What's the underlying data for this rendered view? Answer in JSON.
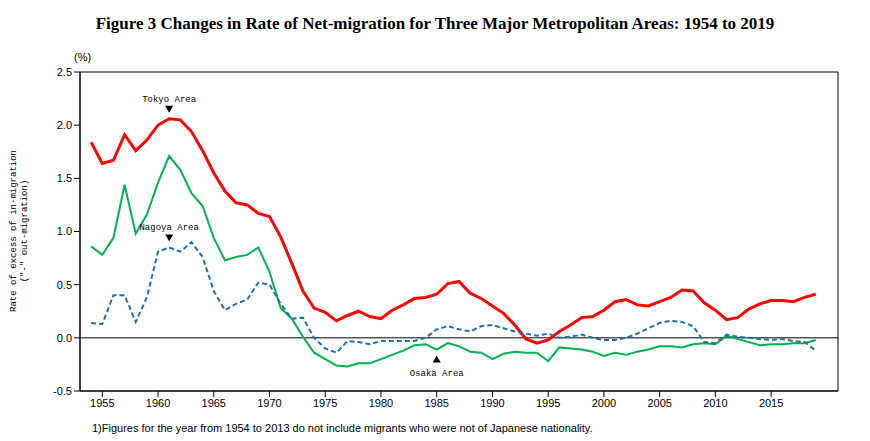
{
  "chart_data": {
    "type": "line",
    "title": "Figure 3 Changes in Rate of Net-migration for Three Major Metropolitan Areas: 1954 to 2019",
    "y_unit": "(%)",
    "y_label": [
      "Rate of excess of in-migration",
      "(\"-\" out-migration)"
    ],
    "footnote": "1)Figures for the year from 1954 to 2013 do not include migrants who were not of Japanese nationality.",
    "x": [
      1954,
      1955,
      1956,
      1957,
      1958,
      1959,
      1960,
      1961,
      1962,
      1963,
      1964,
      1965,
      1966,
      1967,
      1968,
      1969,
      1970,
      1971,
      1972,
      1973,
      1974,
      1975,
      1976,
      1977,
      1978,
      1979,
      1980,
      1981,
      1982,
      1983,
      1984,
      1985,
      1986,
      1987,
      1988,
      1989,
      1990,
      1991,
      1992,
      1993,
      1994,
      1995,
      1996,
      1997,
      1998,
      1999,
      2000,
      2001,
      2002,
      2003,
      2004,
      2005,
      2006,
      2007,
      2008,
      2009,
      2010,
      2011,
      2012,
      2013,
      2014,
      2015,
      2016,
      2017,
      2018,
      2019
    ],
    "series": [
      {
        "name": "Tokyo Area",
        "color": "#ff0000",
        "line_style": "solid",
        "values": [
          1.84,
          1.64,
          1.67,
          1.91,
          1.76,
          1.86,
          2.0,
          2.06,
          2.05,
          1.94,
          1.76,
          1.55,
          1.38,
          1.27,
          1.25,
          1.17,
          1.14,
          0.95,
          0.7,
          0.44,
          0.28,
          0.24,
          0.16,
          0.21,
          0.25,
          0.2,
          0.18,
          0.26,
          0.31,
          0.37,
          0.38,
          0.41,
          0.51,
          0.53,
          0.42,
          0.37,
          0.3,
          0.23,
          0.12,
          -0.01,
          -0.05,
          -0.02,
          0.06,
          0.12,
          0.19,
          0.2,
          0.26,
          0.34,
          0.36,
          0.31,
          0.3,
          0.34,
          0.38,
          0.45,
          0.44,
          0.33,
          0.26,
          0.17,
          0.19,
          0.27,
          0.32,
          0.35,
          0.35,
          0.34,
          0.38,
          0.41
        ]
      },
      {
        "name": "Osaka Area",
        "color": "#00b050",
        "line_style": "solid",
        "values": [
          0.86,
          0.78,
          0.94,
          1.44,
          0.98,
          1.16,
          1.46,
          1.71,
          1.58,
          1.36,
          1.24,
          0.94,
          0.73,
          0.76,
          0.78,
          0.85,
          0.62,
          0.28,
          0.18,
          0.01,
          -0.14,
          -0.2,
          -0.26,
          -0.27,
          -0.24,
          -0.24,
          -0.2,
          -0.16,
          -0.12,
          -0.07,
          -0.06,
          -0.11,
          -0.05,
          -0.08,
          -0.13,
          -0.14,
          -0.2,
          -0.15,
          -0.13,
          -0.14,
          -0.14,
          -0.22,
          -0.09,
          -0.1,
          -0.11,
          -0.13,
          -0.17,
          -0.14,
          -0.16,
          -0.13,
          -0.11,
          -0.08,
          -0.08,
          -0.09,
          -0.06,
          -0.05,
          -0.06,
          0.02,
          -0.01,
          -0.04,
          -0.07,
          -0.06,
          -0.06,
          -0.05,
          -0.05,
          -0.02
        ]
      },
      {
        "name": "Nagoya Area",
        "color": "#1f6fb4",
        "line_style": "dashed",
        "values": [
          0.14,
          0.13,
          0.4,
          0.4,
          0.15,
          0.38,
          0.81,
          0.85,
          0.81,
          0.9,
          0.76,
          0.44,
          0.26,
          0.32,
          0.36,
          0.52,
          0.5,
          0.32,
          0.18,
          0.19,
          0.0,
          -0.1,
          -0.14,
          -0.03,
          -0.04,
          -0.06,
          -0.03,
          -0.03,
          -0.03,
          -0.03,
          0.0,
          0.08,
          0.11,
          0.08,
          0.06,
          0.11,
          0.12,
          0.09,
          0.06,
          0.04,
          0.02,
          0.04,
          0.0,
          0.01,
          0.03,
          0.0,
          -0.02,
          -0.02,
          0.0,
          0.04,
          0.09,
          0.14,
          0.16,
          0.15,
          0.11,
          -0.04,
          -0.05,
          0.03,
          0.01,
          0.0,
          -0.01,
          -0.02,
          -0.01,
          -0.03,
          -0.04,
          -0.12
        ]
      }
    ],
    "annotations": [
      {
        "text": "Tokyo Area",
        "x": 1961,
        "position": "above"
      },
      {
        "text": "Nagoya Area",
        "x": 1961,
        "position": "above"
      },
      {
        "text": "Osaka Area",
        "x": 1985,
        "position": "below"
      }
    ],
    "reference_lines": [
      0
    ],
    "xlim": [
      1953,
      2021
    ],
    "xticks": [
      1955,
      1960,
      1965,
      1970,
      1975,
      1980,
      1985,
      1990,
      1995,
      2000,
      2005,
      2010,
      2015
    ],
    "ylim": [
      -0.5,
      2.5
    ],
    "yticks": [
      -0.5,
      {
        "value": 0,
        "label": "0.0"
      },
      0.5,
      {
        "value": 1,
        "label": "1.0"
      },
      1.5,
      {
        "value": 2,
        "label": "2.0"
      },
      2.5
    ],
    "grid": false
  }
}
